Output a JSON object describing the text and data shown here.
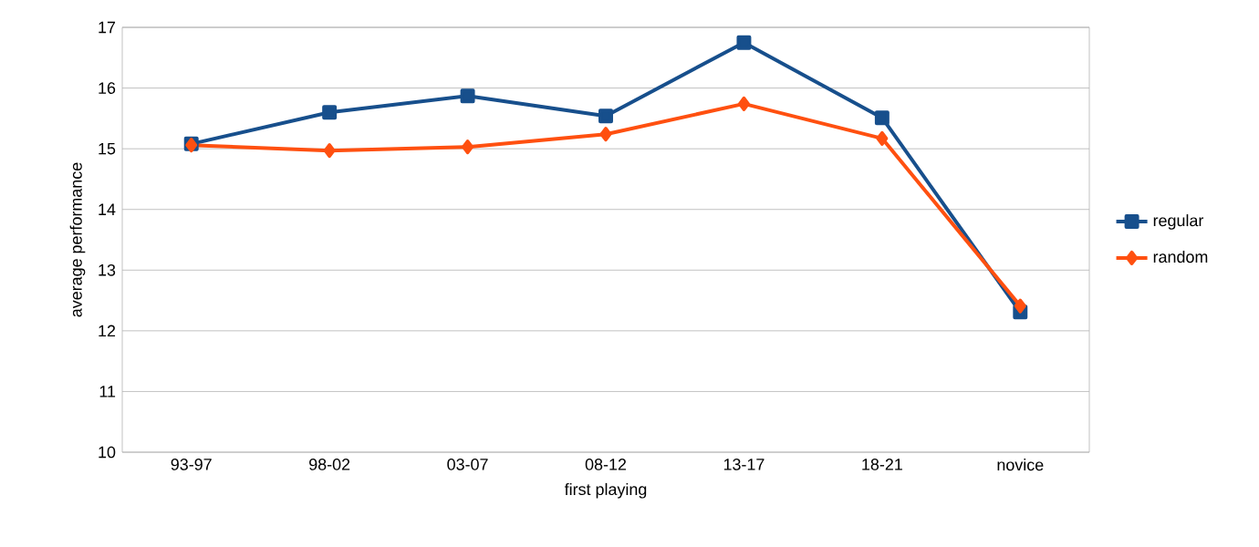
{
  "chart_data": {
    "type": "line",
    "xlabel": "first playing",
    "ylabel": "average performance",
    "categories": [
      "93-97",
      "98-02",
      "03-07",
      "08-12",
      "13-17",
      "18-21",
      "novice"
    ],
    "series": [
      {
        "name": "regular",
        "color": "#174f8c",
        "marker": "square",
        "values": [
          15.08,
          15.6,
          15.87,
          15.54,
          16.75,
          15.51,
          12.31
        ]
      },
      {
        "name": "random",
        "color": "#ff5010",
        "marker": "diamond",
        "values": [
          15.06,
          14.97,
          15.03,
          15.24,
          15.74,
          15.17,
          12.41
        ]
      }
    ],
    "ylim": [
      10,
      17
    ],
    "yticks": [
      10,
      11,
      12,
      13,
      14,
      15,
      16,
      17
    ],
    "grid": "y",
    "legend": "right"
  }
}
